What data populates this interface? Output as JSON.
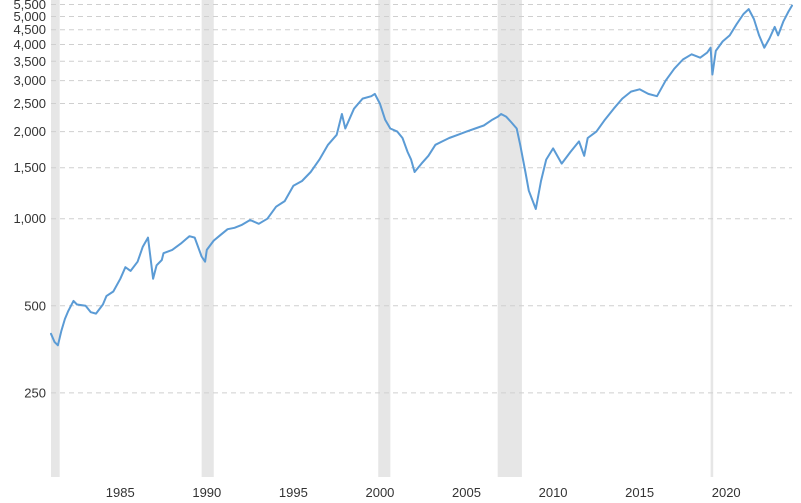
{
  "chart_data": {
    "type": "line",
    "title": "",
    "xlabel": "",
    "ylabel": "",
    "y_scale": "log",
    "ylim": [
      128,
      5700
    ],
    "xlim": [
      1981.0,
      2023.8
    ],
    "grid": "horizontal dashed",
    "legend": "none",
    "x_ticks": [
      1985,
      1990,
      1995,
      2000,
      2005,
      2010,
      2015,
      2020
    ],
    "y_ticks": [
      250,
      500,
      1000,
      1500,
      2000,
      2500,
      3000,
      3500,
      4000,
      4500,
      5000,
      5500
    ],
    "y_tick_labels": [
      "250",
      "500",
      "1,000",
      "1,500",
      "2,000",
      "2,500",
      "3,000",
      "3,500",
      "4,000",
      "4,500",
      "5,000",
      "5,500"
    ],
    "recession_bands": [
      [
        1981.0,
        1981.5
      ],
      [
        1989.7,
        1990.4
      ],
      [
        1999.9,
        2000.6
      ],
      [
        2006.8,
        2008.2
      ],
      [
        2019.1,
        2019.25
      ]
    ],
    "colors": {
      "line": "#5b9bd5",
      "band": "#e6e6e6",
      "grid": "#cfcfcf"
    },
    "series": [
      {
        "x": [
          1981.0,
          1981.2,
          1981.4,
          1981.6,
          1981.8,
          1982.0,
          1982.3,
          1982.5,
          1983.0,
          1983.3,
          1983.6,
          1984.0,
          1984.2,
          1984.6,
          1985.0,
          1985.3,
          1985.6,
          1986.0,
          1986.3,
          1986.6,
          1986.9,
          1987.1,
          1987.4,
          1987.5,
          1988.0,
          1988.5,
          1988.8,
          1989.0,
          1989.3,
          1989.7,
          1989.9,
          1990.0,
          1990.4,
          1990.8,
          1991.2,
          1991.6,
          1992.0,
          1992.5,
          1993.0,
          1993.5,
          1994.0,
          1994.5,
          1995.0,
          1995.5,
          1996.0,
          1996.5,
          1997.0,
          1997.5,
          1997.8,
          1998.0,
          1998.5,
          1999.0,
          1999.5,
          1999.7,
          2000.0,
          2000.3,
          2000.6,
          2001.0,
          2001.3,
          2001.6,
          2001.8,
          2002.0,
          2002.4,
          2002.8,
          2003.2,
          2003.6,
          2004.0,
          2004.5,
          2005.0,
          2005.5,
          2006.0,
          2006.5,
          2006.8,
          2007.0,
          2007.3,
          2007.6,
          2007.9,
          2008.1,
          2008.4,
          2008.6,
          2009.0,
          2009.3,
          2009.6,
          2010.0,
          2010.5,
          2011.0,
          2011.5,
          2011.8,
          2012.0,
          2012.5,
          2013.0,
          2013.5,
          2014.0,
          2014.5,
          2015.0,
          2015.5,
          2016.0,
          2016.5,
          2017.0,
          2017.5,
          2018.0,
          2018.5,
          2018.9,
          2019.1,
          2019.2,
          2019.4,
          2019.8,
          2020.2,
          2020.6,
          2021.0,
          2021.3,
          2021.6,
          2021.9,
          2022.2,
          2022.5,
          2022.8,
          2023.0,
          2023.3,
          2023.6,
          2023.8
        ],
        "values": [
          400,
          375,
          365,
          410,
          450,
          480,
          520,
          505,
          500,
          475,
          470,
          505,
          540,
          560,
          620,
          680,
          660,
          710,
          800,
          860,
          620,
          690,
          720,
          760,
          780,
          820,
          850,
          870,
          860,
          740,
          710,
          780,
          840,
          880,
          920,
          930,
          950,
          990,
          960,
          1000,
          1100,
          1150,
          1300,
          1350,
          1450,
          1600,
          1800,
          1950,
          2300,
          2050,
          2400,
          2600,
          2650,
          2700,
          2500,
          2200,
          2050,
          2000,
          1900,
          1700,
          1600,
          1450,
          1550,
          1650,
          1800,
          1850,
          1900,
          1950,
          2000,
          2050,
          2100,
          2200,
          2250,
          2300,
          2250,
          2150,
          2050,
          1800,
          1450,
          1250,
          1080,
          1350,
          1600,
          1750,
          1550,
          1700,
          1850,
          1650,
          1900,
          2000,
          2200,
          2400,
          2600,
          2750,
          2800,
          2700,
          2650,
          3000,
          3300,
          3550,
          3700,
          3600,
          3750,
          3900,
          3150,
          3800,
          4100,
          4300,
          4700,
          5100,
          5300,
          4900,
          4300,
          3900,
          4200,
          4600,
          4300,
          4800,
          5200,
          5450
        ]
      }
    ]
  }
}
